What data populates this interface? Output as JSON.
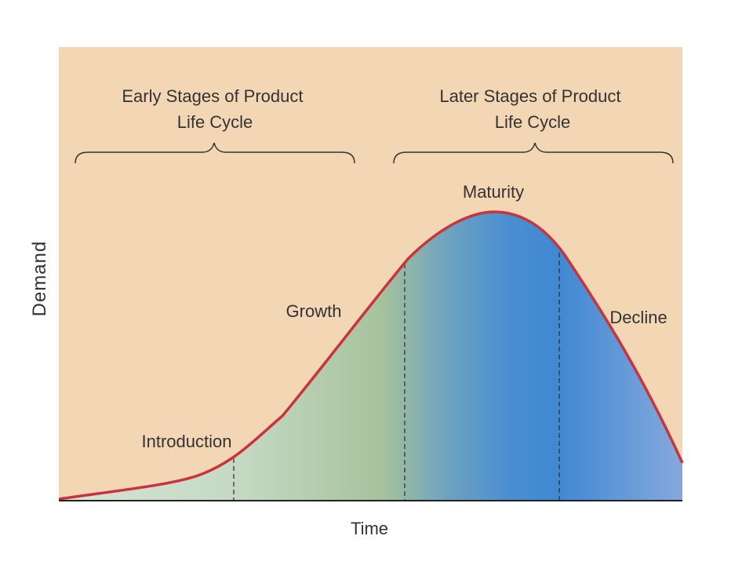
{
  "diagram": {
    "groups": [
      {
        "line1": "Early Stages of Product",
        "line2": "Life Cycle"
      },
      {
        "line1": "Later Stages of Product",
        "line2": "Life Cycle"
      }
    ],
    "stages": [
      "Introduction",
      "Growth",
      "Maturity",
      "Decline"
    ],
    "x_axis_label": "Time",
    "y_axis_label": "Demand"
  },
  "colors": {
    "background": "#f3d7b5",
    "curve": "#c8343e",
    "fill_light": "#c5d9c2",
    "fill_green": "#a8c39c",
    "fill_blue": "#3f8ad1",
    "fill_light_blue": "#7aa4d9",
    "axis": "#222222",
    "divider": "#333333",
    "text": "#333333"
  }
}
